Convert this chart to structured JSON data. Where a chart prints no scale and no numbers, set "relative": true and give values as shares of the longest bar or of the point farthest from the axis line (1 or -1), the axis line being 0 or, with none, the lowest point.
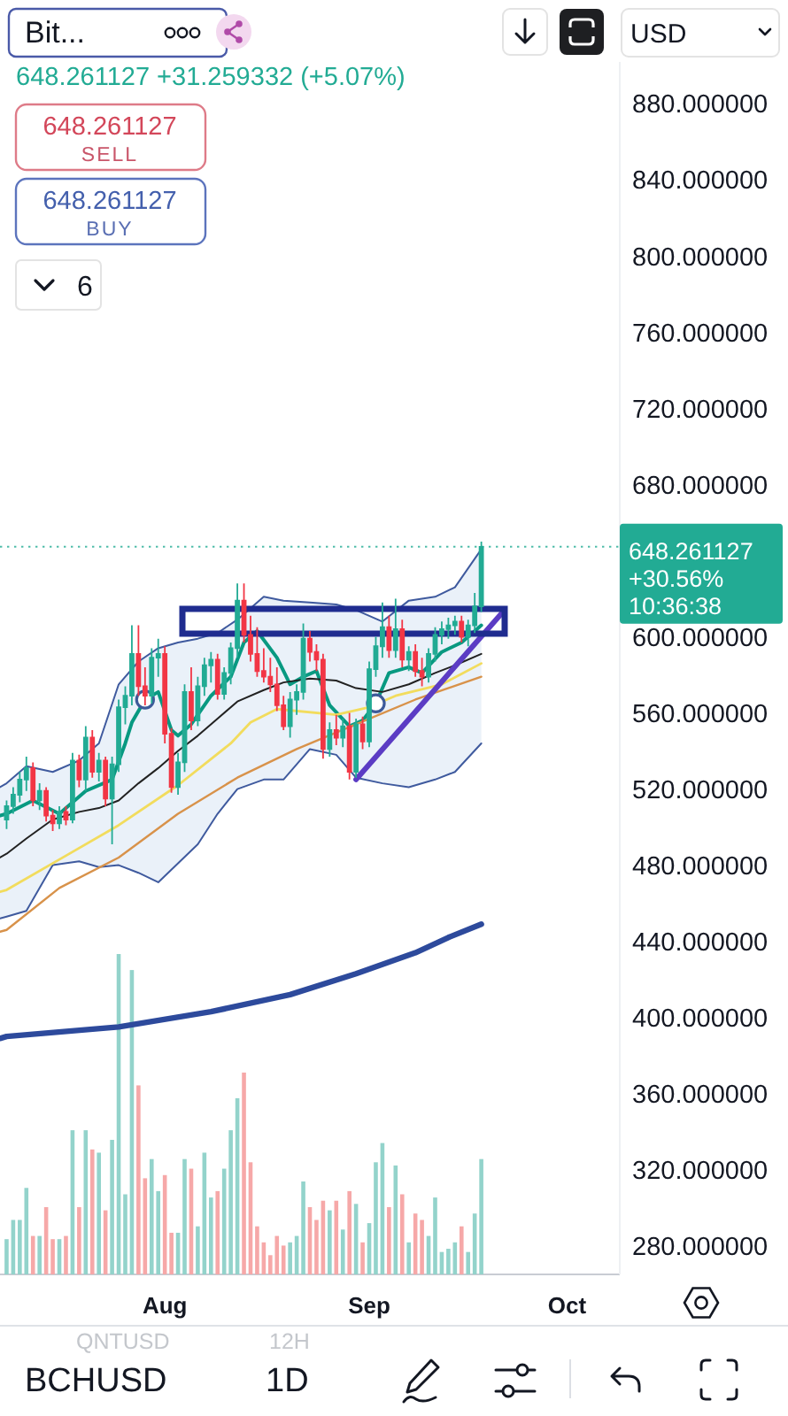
{
  "chart_data": [
    {
      "type": "candlestick",
      "title": "Bit...",
      "subtitle": "648.261127 +31.259332 (+5.07%)",
      "annotations": [
        "648.261127",
        "SELL",
        "648.261127",
        "BUY",
        "6",
        "USD",
        "QNTUSD",
        "12H",
        "BCHUSD",
        "1D"
      ],
      "x": [
        "--07-08",
        "--07-09",
        "--07-10",
        "--07-11",
        "--07-12",
        "--07-13",
        "--07-14",
        "--07-15",
        "--07-16",
        "--07-17",
        "--07-18",
        "--07-19",
        "--07-20",
        "--07-21",
        "--07-22",
        "--07-23",
        "--07-24",
        "--07-25",
        "--07-26",
        "--07-27",
        "--07-28",
        "--07-29",
        "--07-30",
        "--07-31",
        "--08-01",
        "--08-02",
        "--08-03",
        "--08-04",
        "--08-05",
        "--08-06",
        "--08-07",
        "--08-08",
        "--08-09",
        "--08-10",
        "--08-11",
        "--08-12",
        "--08-13",
        "--08-14",
        "--08-15",
        "--08-16",
        "--08-17",
        "--08-18",
        "--08-19",
        "--08-20",
        "--08-21",
        "--08-22",
        "--08-23",
        "--08-24",
        "--08-25",
        "--08-26",
        "--08-27",
        "--08-28",
        "--08-29",
        "--08-30",
        "--08-31",
        "--09-01",
        "--09-02",
        "--09-03",
        "--09-04",
        "--09-05",
        "--09-06",
        "--09-07",
        "--09-08",
        "--09-09",
        "--09-10",
        "--09-11",
        "--09-12",
        "--09-13",
        "--09-14",
        "--09-15",
        "--09-16",
        "--09-17",
        "--09-18"
      ],
      "ohlc": [
        [
          505,
          515,
          500,
          512
        ],
        [
          512,
          522,
          508,
          518
        ],
        [
          518,
          530,
          514,
          526
        ],
        [
          526,
          538,
          520,
          532
        ],
        [
          532,
          535,
          512,
          515
        ],
        [
          515,
          524,
          510,
          520
        ],
        [
          520,
          522,
          504,
          507
        ],
        [
          507,
          510,
          499,
          503
        ],
        [
          503,
          512,
          500,
          509
        ],
        [
          509,
          512,
          502,
          505
        ],
        [
          505,
          540,
          503,
          536
        ],
        [
          536,
          539,
          522,
          526
        ],
        [
          526,
          554,
          520,
          548
        ],
        [
          548,
          552,
          527,
          530
        ],
        [
          530,
          540,
          525,
          536
        ],
        [
          536,
          538,
          512,
          516
        ],
        [
          516,
          538,
          492,
          534
        ],
        [
          534,
          568,
          530,
          564
        ],
        [
          564,
          575,
          555,
          570
        ],
        [
          570,
          607,
          565,
          592
        ],
        [
          592,
          607,
          570,
          575
        ],
        [
          575,
          585,
          565,
          570
        ],
        [
          570,
          595,
          566,
          590
        ],
        [
          590,
          600,
          580,
          592
        ],
        [
          592,
          596,
          545,
          550
        ],
        [
          550,
          553,
          519,
          522
        ],
        [
          522,
          540,
          518,
          535
        ],
        [
          535,
          576,
          530,
          572
        ],
        [
          572,
          585,
          552,
          557
        ],
        [
          557,
          580,
          554,
          575
        ],
        [
          575,
          590,
          570,
          586
        ],
        [
          586,
          593,
          577,
          589
        ],
        [
          589,
          592,
          568,
          571
        ],
        [
          571,
          585,
          568,
          582
        ],
        [
          582,
          598,
          576,
          595
        ],
        [
          595,
          629,
          590,
          620
        ],
        [
          620,
          629,
          598,
          602
        ],
        [
          602,
          612,
          588,
          592
        ],
        [
          592,
          606,
          580,
          583
        ],
        [
          583,
          595,
          577,
          580
        ],
        [
          580,
          590,
          572,
          576
        ],
        [
          576,
          585,
          562,
          565
        ],
        [
          565,
          570,
          552,
          554
        ],
        [
          554,
          572,
          548,
          568
        ],
        [
          568,
          576,
          560,
          572
        ],
        [
          572,
          608,
          568,
          600
        ],
        [
          600,
          604,
          588,
          593
        ],
        [
          593,
          597,
          583,
          589
        ],
        [
          589,
          592,
          537,
          542
        ],
        [
          542,
          556,
          538,
          552
        ],
        [
          552,
          560,
          544,
          548
        ],
        [
          548,
          558,
          543,
          554
        ],
        [
          554,
          561,
          526,
          530
        ],
        [
          530,
          558,
          527,
          555
        ],
        [
          555,
          559,
          542,
          546
        ],
        [
          546,
          588,
          543,
          584
        ],
        [
          584,
          601,
          580,
          596
        ],
        [
          596,
          619,
          590,
          606
        ],
        [
          606,
          612,
          590,
          594
        ],
        [
          594,
          621,
          590,
          605
        ],
        [
          605,
          610,
          585,
          589
        ],
        [
          589,
          596,
          583,
          593
        ],
        [
          593,
          597,
          580,
          583
        ],
        [
          583,
          590,
          575,
          580
        ],
        [
          580,
          595,
          577,
          592
        ],
        [
          592,
          606,
          588,
          602
        ],
        [
          602,
          609,
          597,
          605
        ],
        [
          605,
          611,
          600,
          607
        ],
        [
          607,
          612,
          602,
          609
        ],
        [
          609,
          612,
          598,
          601
        ],
        [
          601,
          610,
          596,
          607
        ],
        [
          607,
          624,
          603,
          617
        ],
        [
          617,
          651,
          614,
          648.261127
        ]
      ],
      "colors": [
        "#22ab94",
        "#22ab94",
        "#22ab94",
        "#22ab94",
        "#f23645",
        "#22ab94",
        "#f23645",
        "#f23645",
        "#22ab94",
        "#f23645",
        "#22ab94",
        "#f23645",
        "#22ab94",
        "#f23645",
        "#22ab94",
        "#f23645",
        "#22ab94",
        "#22ab94",
        "#22ab94",
        "#22ab94",
        "#f23645",
        "#f23645",
        "#22ab94",
        "#22ab94",
        "#f23645",
        "#f23645",
        "#22ab94",
        "#22ab94",
        "#f23645",
        "#22ab94",
        "#22ab94",
        "#22ab94",
        "#f23645",
        "#22ab94",
        "#22ab94",
        "#22ab94",
        "#f23645",
        "#f23645",
        "#f23645",
        "#f23645",
        "#f23645",
        "#f23645",
        "#f23645",
        "#22ab94",
        "#22ab94",
        "#22ab94",
        "#f23645",
        "#f23645",
        "#f23645",
        "#22ab94",
        "#f23645",
        "#22ab94",
        "#f23645",
        "#22ab94",
        "#f23645",
        "#22ab94",
        "#22ab94",
        "#22ab94",
        "#f23645",
        "#22ab94",
        "#f23645",
        "#22ab94",
        "#f23645",
        "#f23645",
        "#22ab94",
        "#22ab94",
        "#22ab94",
        "#22ab94",
        "#22ab94",
        "#f23645",
        "#22ab94",
        "#22ab94",
        "#22ab94"
      ],
      "series": [
        {
          "type": "line",
          "color": "#089981",
          "x": [
            "--07-07",
            "--07-08",
            "--07-12",
            "--07-16",
            "--07-20",
            "--07-24",
            "--07-26",
            "--07-27",
            "--07-29",
            "--07-31",
            "--08-02",
            "--08-03",
            "--08-05",
            "--08-08",
            "--08-11",
            "--08-13",
            "--08-15",
            "--08-18",
            "--08-20",
            "--08-22",
            "--08-24",
            "--08-26",
            "--08-29",
            "--08-31",
            "--09-02",
            "--09-04",
            "--09-07",
            "--09-09",
            "--09-12",
            "--09-15",
            "--09-18"
          ],
          "values": [
            507,
            508,
            515,
            508,
            520,
            526,
            545,
            556,
            568,
            572,
            552,
            549,
            555,
            570,
            580,
            598,
            604,
            590,
            576,
            580,
            583,
            565,
            554,
            557,
            566,
            582,
            585,
            582,
            593,
            598,
            607
          ]
        },
        {
          "type": "line",
          "color": "#222222",
          "x": [
            "--07-07",
            "--07-08",
            "--07-11",
            "--07-15",
            "--07-19",
            "--07-22",
            "--07-25",
            "--07-28",
            "--07-31",
            "--08-03",
            "--08-06",
            "--08-09",
            "--08-12",
            "--08-16",
            "--08-19",
            "--08-23",
            "--08-27",
            "--08-30",
            "--09-03",
            "--09-07",
            "--09-11",
            "--09-14",
            "--09-18"
          ],
          "values": [
            485,
            487,
            495,
            505,
            509,
            511,
            515,
            524,
            532,
            541,
            549,
            558,
            567,
            573,
            577,
            579,
            578,
            574,
            572,
            576,
            582,
            586,
            592
          ],
          "upper": [
            522,
            524,
            533,
            530,
            536,
            545,
            576,
            588,
            595,
            598,
            600,
            603,
            610,
            622,
            620,
            619,
            618,
            615,
            609,
            620,
            622,
            627,
            647
          ],
          "lower": [
            453,
            454,
            457,
            481,
            483,
            480,
            481,
            477,
            472,
            482,
            492,
            508,
            521,
            526,
            526,
            542,
            539,
            527,
            524,
            522,
            526,
            530,
            545
          ]
        },
        {
          "type": "line",
          "color": "#3f5a9e",
          "x": [
            "--07-07",
            "--07-08",
            "--07-11",
            "--07-15",
            "--07-19",
            "--07-22",
            "--07-25",
            "--07-28",
            "--07-31",
            "--08-03",
            "--08-06",
            "--08-09",
            "--08-12",
            "--08-16",
            "--08-19",
            "--08-23",
            "--08-27",
            "--08-30",
            "--09-03",
            "--09-07",
            "--09-11",
            "--09-14",
            "--09-18"
          ],
          "values": [
            522,
            524,
            533,
            530,
            536,
            545,
            576,
            588,
            595,
            598,
            600,
            603,
            610,
            622,
            620,
            619,
            618,
            615,
            609,
            620,
            622,
            627,
            647
          ]
        },
        {
          "type": "line",
          "color": "#3f5a9e",
          "x": [
            "--07-07",
            "--07-08",
            "--07-11",
            "--07-15",
            "--07-19",
            "--07-22",
            "--07-25",
            "--07-28",
            "--07-31",
            "--08-03",
            "--08-06",
            "--08-09",
            "--08-12",
            "--08-16",
            "--08-19",
            "--08-23",
            "--08-27",
            "--08-30",
            "--09-03",
            "--09-07",
            "--09-11",
            "--09-14",
            "--09-18"
          ],
          "values": [
            453,
            454,
            457,
            481,
            483,
            480,
            481,
            477,
            472,
            482,
            492,
            508,
            521,
            526,
            526,
            542,
            539,
            527,
            524,
            522,
            526,
            530,
            545
          ]
        },
        {
          "type": "line",
          "color": "#f2dc5d",
          "x": [
            "--07-07",
            "--07-08",
            "--07-17",
            "--07-25",
            "--08-03",
            "--08-11",
            "--08-14",
            "--08-18",
            "--08-27",
            "--09-01",
            "--09-05",
            "--09-12",
            "--09-18"
          ],
          "values": [
            467,
            468,
            486,
            502,
            523,
            545,
            556,
            563,
            560,
            564,
            570,
            576,
            587
          ]
        },
        {
          "type": "line",
          "color": "#d8924a",
          "x": [
            "--07-07",
            "--07-08",
            "--07-16",
            "--07-25",
            "--08-03",
            "--08-12",
            "--08-21",
            "--08-30",
            "--09-08",
            "--09-18"
          ],
          "values": [
            446,
            447,
            469,
            485,
            508,
            527,
            542,
            555,
            568,
            580
          ]
        },
        {
          "type": "line",
          "color": "#2d4a9c",
          "x": [
            "--07-07",
            "--07-08",
            "--07-25",
            "--08-08",
            "--08-20",
            "--08-30",
            "--09-08",
            "--09-13",
            "--09-18"
          ],
          "values": [
            390,
            391,
            396,
            404,
            413,
            424,
            435,
            443,
            450
          ]
        },
        {
          "type": "line",
          "color": "#5b3cc4",
          "x": [
            "--08-30",
            "--09-21"
          ],
          "values": [
            526,
            613
          ]
        },
        {
          "type": "scatter",
          "color": "#3d5a99",
          "marker": "circle",
          "x": [
            "--07-29",
            "--09-02"
          ],
          "values": [
            568,
            566
          ]
        }
      ],
      "xlim": [
        "--07-07",
        "--10-09"
      ],
      "xticks": [
        {
          "value": "--08-01",
          "label": "Aug"
        },
        {
          "value": "--09-01",
          "label": "Sep"
        },
        {
          "value": "--10-01",
          "label": "Oct"
        }
      ],
      "ylim": [
        266,
        903
      ],
      "yticks": [
        {
          "value": 880,
          "label": "880.000000"
        },
        {
          "value": 840,
          "label": "840.000000"
        },
        {
          "value": 800,
          "label": "800.000000"
        },
        {
          "value": 760,
          "label": "760.000000"
        },
        {
          "value": 720,
          "label": "720.000000"
        },
        {
          "value": 680,
          "label": "680.000000"
        },
        {
          "value": 600,
          "label": "600.000000"
        },
        {
          "value": 560,
          "label": "560.000000"
        },
        {
          "value": 520,
          "label": "520.000000"
        },
        {
          "value": 480,
          "label": "480.000000"
        },
        {
          "value": 440,
          "label": "440.000000"
        },
        {
          "value": 400,
          "label": "400.000000"
        },
        {
          "value": 360,
          "label": "360.000000"
        },
        {
          "value": 320,
          "label": "320.000000"
        },
        {
          "value": 280,
          "label": "280.000000"
        }
      ],
      "ref_lines": [
        {
          "axis": "y",
          "value": 648.261127,
          "label": "648.261127\n+30.56%\n10:36:38",
          "color": "#22ab94",
          "line_style": "dotted"
        }
      ]
    },
    {
      "type": "bar",
      "relative": true,
      "tick_labels": false,
      "xlim": [
        "--07-07",
        "--10-09"
      ],
      "x": [
        "--07-08",
        "--07-09",
        "--07-10",
        "--07-11",
        "--07-12",
        "--07-13",
        "--07-14",
        "--07-15",
        "--07-16",
        "--07-17",
        "--07-18",
        "--07-19",
        "--07-20",
        "--07-21",
        "--07-22",
        "--07-23",
        "--07-24",
        "--07-25",
        "--07-26",
        "--07-27",
        "--07-28",
        "--07-29",
        "--07-30",
        "--07-31",
        "--08-01",
        "--08-02",
        "--08-03",
        "--08-04",
        "--08-05",
        "--08-06",
        "--08-07",
        "--08-08",
        "--08-09",
        "--08-10",
        "--08-11",
        "--08-12",
        "--08-13",
        "--08-14",
        "--08-15",
        "--08-16",
        "--08-17",
        "--08-18",
        "--08-19",
        "--08-20",
        "--08-21",
        "--08-22",
        "--08-23",
        "--08-24",
        "--08-25",
        "--08-26",
        "--08-27",
        "--08-28",
        "--08-29",
        "--08-30",
        "--08-31",
        "--09-01",
        "--09-02",
        "--09-03",
        "--09-04",
        "--09-05",
        "--09-06",
        "--09-07",
        "--09-08",
        "--09-09",
        "--09-10",
        "--09-11",
        "--09-12",
        "--09-13",
        "--09-14",
        "--09-15",
        "--09-16",
        "--09-17",
        "--09-18"
      ],
      "values": [
        0.11,
        0.17,
        0.17,
        0.27,
        0.12,
        0.12,
        0.21,
        0.11,
        0.11,
        0.12,
        0.45,
        0.21,
        0.45,
        0.39,
        0.38,
        0.2,
        0.42,
        1,
        0.25,
        0.95,
        0.59,
        0.3,
        0.36,
        0.26,
        0.31,
        0.13,
        0.13,
        0.36,
        0.33,
        0.15,
        0.38,
        0.24,
        0.26,
        0.33,
        0.45,
        0.55,
        0.63,
        0.35,
        0.15,
        0.1,
        0.06,
        0.12,
        0.09,
        0.1,
        0.12,
        0.29,
        0.21,
        0.17,
        0.23,
        0.2,
        0.23,
        0.14,
        0.26,
        0.22,
        0.1,
        0.16,
        0.35,
        0.41,
        0.21,
        0.34,
        0.25,
        0.1,
        0.19,
        0.17,
        0.12,
        0.24,
        0.07,
        0.08,
        0.1,
        0.15,
        0.07,
        0.19,
        0.36
      ],
      "colors": [
        "#93d3cb",
        "#93d3cb",
        "#93d3cb",
        "#93d3cb",
        "#f6a8a8",
        "#93d3cb",
        "#f6a8a8",
        "#f6a8a8",
        "#93d3cb",
        "#f6a8a8",
        "#93d3cb",
        "#f6a8a8",
        "#93d3cb",
        "#f6a8a8",
        "#93d3cb",
        "#f6a8a8",
        "#93d3cb",
        "#93d3cb",
        "#93d3cb",
        "#93d3cb",
        "#f6a8a8",
        "#f6a8a8",
        "#93d3cb",
        "#93d3cb",
        "#f6a8a8",
        "#f6a8a8",
        "#93d3cb",
        "#93d3cb",
        "#f6a8a8",
        "#93d3cb",
        "#93d3cb",
        "#93d3cb",
        "#f6a8a8",
        "#93d3cb",
        "#93d3cb",
        "#93d3cb",
        "#f6a8a8",
        "#f6a8a8",
        "#f6a8a8",
        "#f6a8a8",
        "#f6a8a8",
        "#f6a8a8",
        "#f6a8a8",
        "#93d3cb",
        "#93d3cb",
        "#93d3cb",
        "#f6a8a8",
        "#f6a8a8",
        "#f6a8a8",
        "#93d3cb",
        "#f6a8a8",
        "#93d3cb",
        "#f6a8a8",
        "#93d3cb",
        "#f6a8a8",
        "#93d3cb",
        "#93d3cb",
        "#93d3cb",
        "#f6a8a8",
        "#93d3cb",
        "#f6a8a8",
        "#93d3cb",
        "#f6a8a8",
        "#f6a8a8",
        "#93d3cb",
        "#93d3cb",
        "#93d3cb",
        "#93d3cb",
        "#93d3cb",
        "#f6a8a8",
        "#93d3cb",
        "#93d3cb",
        "#93d3cb"
      ]
    }
  ]
}
